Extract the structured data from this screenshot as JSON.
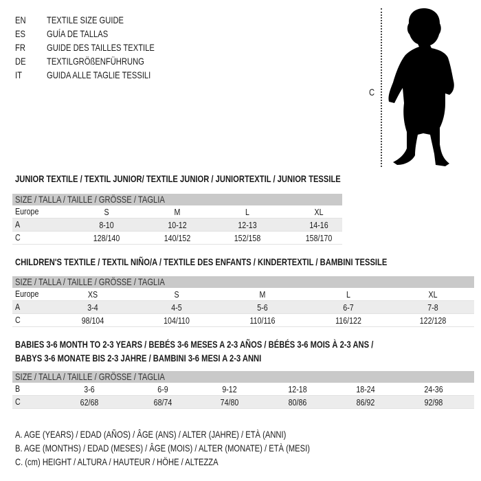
{
  "languages": [
    {
      "code": "EN",
      "text": "TEXTILE SIZE GUIDE"
    },
    {
      "code": "ES",
      "text": "GUÍA DE TALLAS"
    },
    {
      "code": "FR",
      "text": "GUIDE DES TAILLES TEXTILE"
    },
    {
      "code": "DE",
      "text": "TEXTILGRÖßENFÜHRUNG"
    },
    {
      "code": "IT",
      "text": "GUIDA ALLE TAGLIE TESSILI"
    }
  ],
  "figure": {
    "measure_label": "C",
    "icon": "child-silhouette-icon"
  },
  "sections": [
    {
      "title_lines": [
        "JUNIOR TEXTILE / TEXTIL JUNIOR/ TEXTILE JUNIOR / JUNIORTEXTIL / JUNIOR TESSILE"
      ],
      "header": "SIZE / TALLA / TAILLE / GRÖSSE / TAGLIA",
      "rows": [
        {
          "label": "Europe",
          "values": [
            "S",
            "M",
            "L",
            "XL"
          ]
        },
        {
          "label": "A",
          "values": [
            "8-10",
            "10-12",
            "12-13",
            "14-16"
          ]
        },
        {
          "label": "C",
          "values": [
            "128/140",
            "140/152",
            "152/158",
            "158/170"
          ]
        }
      ]
    },
    {
      "title_lines": [
        "CHILDREN'S TEXTILE / TEXTIL NIÑO/A / TEXTILE DES ENFANTS / KINDERTEXTIL / BAMBINI TESSILE"
      ],
      "header": "SIZE / TALLA / TAILLE / GRÖSSE / TAGLIA",
      "rows": [
        {
          "label": "Europe",
          "values": [
            "XS",
            "S",
            "M",
            "L",
            "XL"
          ]
        },
        {
          "label": "A",
          "values": [
            "3-4",
            "4-5",
            "5-6",
            "6-7",
            "7-8"
          ]
        },
        {
          "label": "C",
          "values": [
            "98/104",
            "104/110",
            "110/116",
            "116/122",
            "122/128"
          ]
        }
      ]
    },
    {
      "title_lines": [
        "BABIES 3-6 MONTH TO 2-3 YEARS / BEBÉS 3-6 MESES A 2-3 AÑOS / BÉBÉS 3-6 MOIS À 2-3 ANS /",
        "BABYS 3-6 MONATE BIS 2-3 JAHRE / BAMBINI 3-6 MESI A 2-3 ANNI"
      ],
      "header": "SIZE / TALLA / TAILLE / GRÖSSE / TAGLIA",
      "rows": [
        {
          "label": "B",
          "values": [
            "3-6",
            "6-9",
            "9-12",
            "12-18",
            "18-24",
            "24-36"
          ]
        },
        {
          "label": "C",
          "values": [
            "62/68",
            "68/74",
            "74/80",
            "80/86",
            "86/92",
            "92/98"
          ]
        }
      ]
    }
  ],
  "legend": [
    "A. AGE (YEARS) / EDAD (AÑOS) / ÂGE (ANS) / ALTER (JAHRE) / ETÀ (ANNI)",
    "B. AGE (MONTHS) / EDAD (MESES) / ÂGE (MOIS) / ALTER (MONATE) / ETÀ (MESI)",
    "C. (cm) HEIGHT / ALTURA / HAUTEUR / HÖHE / ALTEZZA"
  ]
}
